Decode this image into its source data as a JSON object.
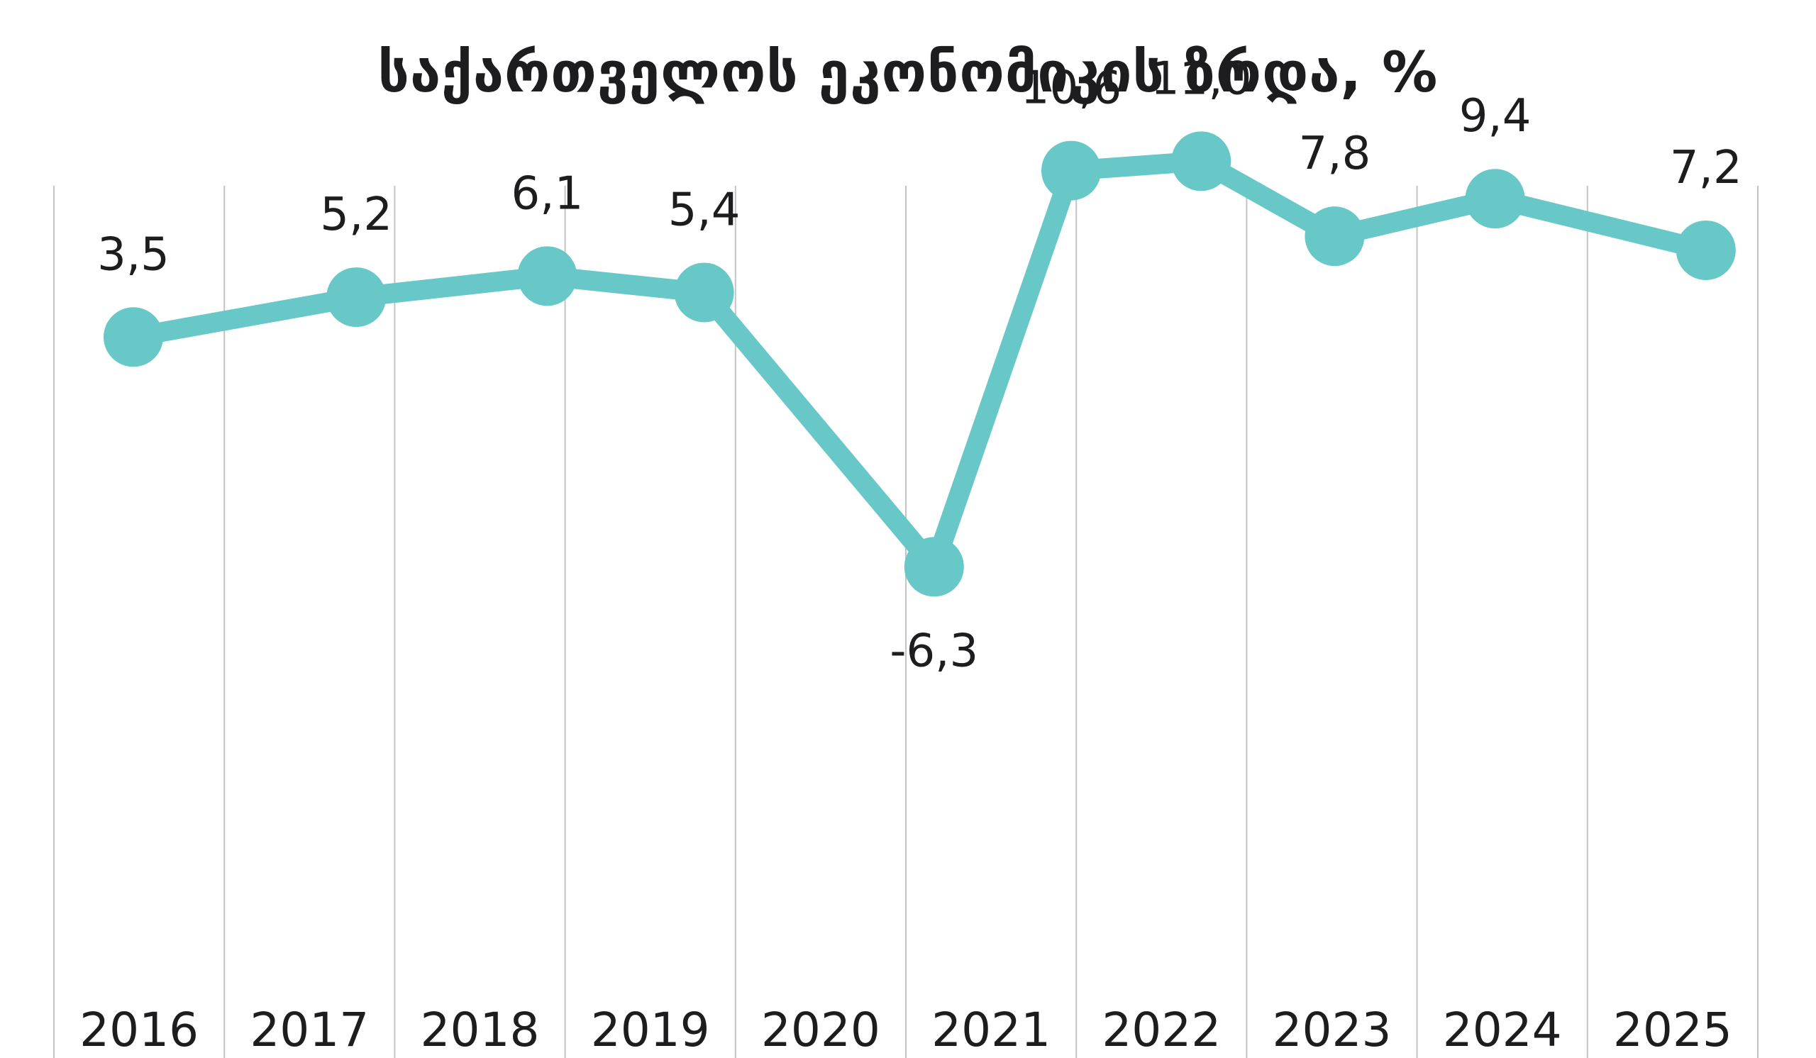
{
  "chart_data": {
    "type": "line",
    "title": "საქართველოს ეკონომიკის ზრდა, %",
    "categories": [
      "2016",
      "2017",
      "2018",
      "2019",
      "2020",
      "2021",
      "2022",
      "2023",
      "2024",
      "2025"
    ],
    "series": [
      {
        "values": [
          3.5,
          5.2,
          6.1,
          5.4,
          -6.3,
          10.6,
          11.0,
          7.8,
          9.4,
          7.2
        ],
        "labels": [
          "3,5",
          "5,2",
          "6,1",
          "5,4",
          "-6,3",
          "10,6",
          "11,0",
          "7,8",
          "9,4",
          "7,2"
        ]
      }
    ],
    "xlabel": "",
    "ylabel": "",
    "grid": "vertical",
    "legend": "none",
    "colors": {
      "line": "#68c8c8",
      "grid": "#c4c4c4",
      "text": "#1d1d1f"
    }
  }
}
